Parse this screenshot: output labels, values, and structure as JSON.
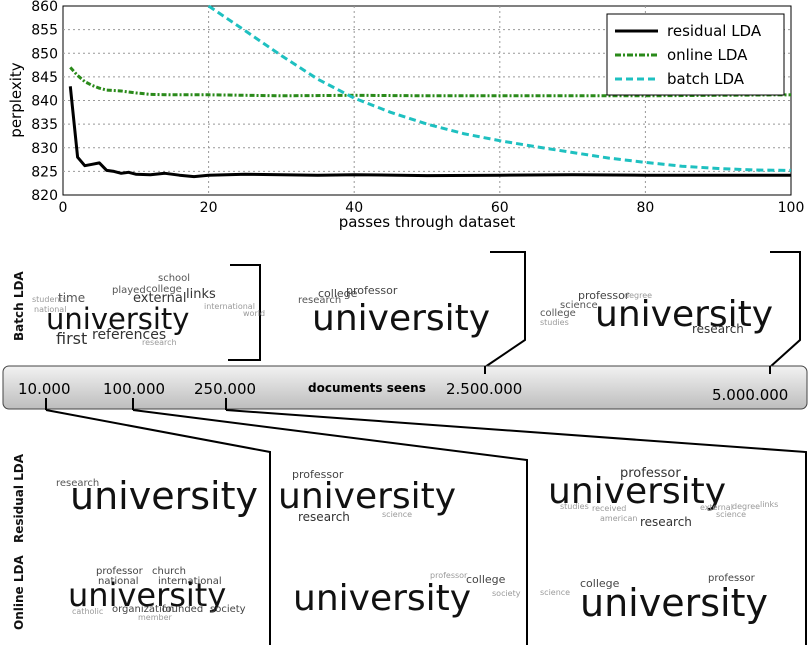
{
  "chart_data": {
    "type": "line",
    "title": "",
    "xlabel": "passes through dataset",
    "ylabel": "perplexity",
    "xlim": [
      0,
      100
    ],
    "ylim": [
      820,
      860
    ],
    "xticks": [
      0,
      20,
      40,
      60,
      80,
      100
    ],
    "yticks": [
      820,
      825,
      830,
      835,
      840,
      845,
      850,
      855,
      860
    ],
    "grid": true,
    "legend_position": "top-right",
    "series": [
      {
        "name": "residual LDA",
        "color": "#000000",
        "style": "solid",
        "x": [
          1,
          2,
          3,
          4,
          5,
          6,
          7,
          8,
          9,
          10,
          12,
          14,
          16,
          18,
          20,
          25,
          30,
          35,
          40,
          50,
          60,
          70,
          80,
          90,
          100
        ],
        "y": [
          843,
          828,
          826.2,
          826.5,
          826.8,
          825.2,
          825,
          824.6,
          824.8,
          824.4,
          824.3,
          824.6,
          824.2,
          823.9,
          824.2,
          824.4,
          824.3,
          824.2,
          824.3,
          824.1,
          824.2,
          824.3,
          824.2,
          824.2,
          824.2
        ]
      },
      {
        "name": "online LDA",
        "color": "#2a8a1a",
        "style": "dashdot",
        "x": [
          1,
          2,
          3,
          4,
          5,
          6,
          8,
          10,
          12,
          15,
          20,
          30,
          40,
          50,
          60,
          70,
          80,
          90,
          100
        ],
        "y": [
          847,
          845.3,
          844,
          843.2,
          842.6,
          842.2,
          842,
          841.6,
          841.3,
          841.2,
          841.2,
          841,
          841.1,
          841,
          841,
          841,
          841,
          841.1,
          841.2
        ]
      },
      {
        "name": "batch LDA",
        "color": "#1ec0c0",
        "style": "dashed",
        "x": [
          20,
          25,
          30,
          35,
          40,
          45,
          50,
          55,
          60,
          65,
          70,
          75,
          80,
          85,
          90,
          95,
          100
        ],
        "y": [
          860,
          854.8,
          849.5,
          844.5,
          840.5,
          837.5,
          835,
          833,
          831.5,
          830.2,
          829,
          827.8,
          826.9,
          826.1,
          825.6,
          825.3,
          825.2
        ]
      }
    ]
  },
  "figure": {
    "row_label_batch": "Batch LDA",
    "row_label_residual": "Residual LDA",
    "row_label_online": "Online LDA",
    "timeline_title": "documents seens",
    "timeline_ticks": [
      "10.000",
      "100.000",
      "250.000",
      "2.500.000",
      "5.000.000"
    ],
    "cloud_main_word": "university",
    "cloud_batch_1": [
      "school",
      "played",
      "college",
      "links",
      "time",
      "external",
      "international",
      "world",
      "references",
      "first",
      "students",
      "national",
      "research"
    ],
    "cloud_batch_2": [
      "college",
      "professor",
      "research"
    ],
    "cloud_batch_3": [
      "professor",
      "degree",
      "science",
      "college",
      "research",
      "studies"
    ],
    "cloud_res_1": [
      "research"
    ],
    "cloud_res_2": [
      "professor",
      "research",
      "science"
    ],
    "cloud_res_3": [
      "professor",
      "science",
      "received",
      "american",
      "research",
      "external",
      "degree",
      "links",
      "studies"
    ],
    "cloud_onl_1": [
      "professor",
      "church",
      "national",
      "international",
      "organization",
      "founded",
      "society",
      "member",
      "catholic"
    ],
    "cloud_onl_2": [
      "college",
      "professor",
      "society"
    ],
    "cloud_onl_3": [
      "college",
      "professor",
      "science"
    ]
  }
}
